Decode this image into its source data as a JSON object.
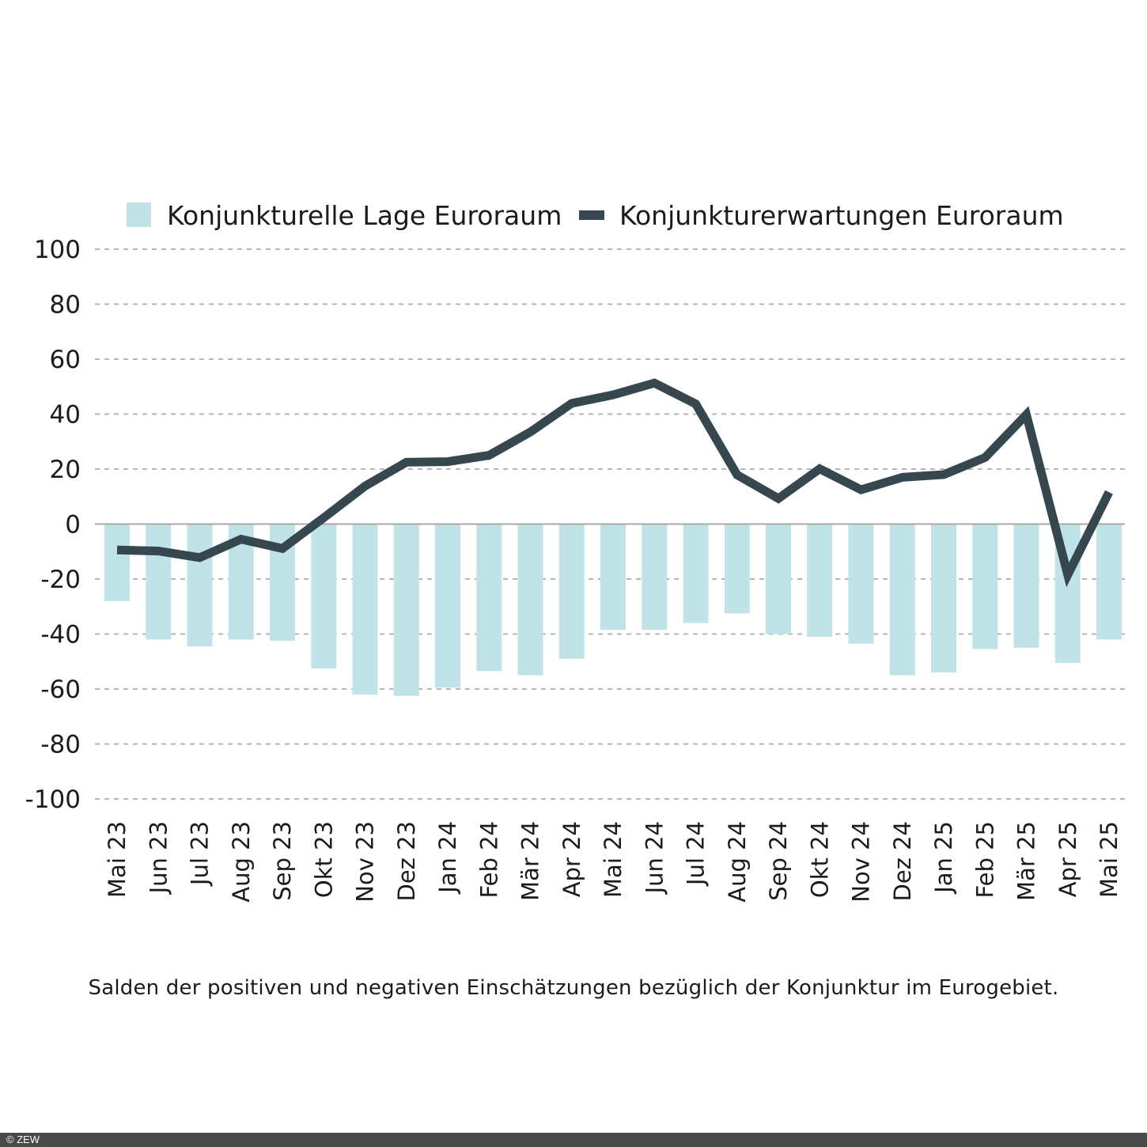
{
  "colors": {
    "bar": "#bfe3e6",
    "line": "#37474f",
    "grid": "#b5b5b5",
    "zero": "#a8a8a8"
  },
  "chart_data": {
    "type": "bar",
    "categories": [
      "Mai 23",
      "Jun 23",
      "Jul 23",
      "Aug 23",
      "Sep 23",
      "Okt 23",
      "Nov 23",
      "Dez 23",
      "Jan 24",
      "Feb 24",
      "Mär 24",
      "Apr 24",
      "Mai 24",
      "Jun 24",
      "Jul 24",
      "Aug 24",
      "Sep 24",
      "Okt 24",
      "Nov 24",
      "Dez 24",
      "Jan 25",
      "Feb 25",
      "Mär 25",
      "Apr 25",
      "Mai 25"
    ],
    "ylim": [
      -100,
      100
    ],
    "yticks": [
      "100",
      "80",
      "60",
      "40",
      "20",
      "0",
      "-20",
      "-40",
      "-60",
      "-80",
      "-100"
    ],
    "grid": "dashed horizontal",
    "legend_position": "top",
    "series": [
      {
        "name": "Konjunkturelle Lage Euroraum",
        "type": "bar",
        "values": [
          -28,
          -42,
          -44.5,
          -42,
          -42.5,
          -52.5,
          -62,
          -62.5,
          -59.5,
          -53.5,
          -55,
          -49,
          -38.5,
          -38.5,
          -36,
          -32.5,
          -40,
          -41,
          -43.5,
          -55,
          -54,
          -45.5,
          -45,
          -50.5,
          -42
        ]
      },
      {
        "name": "Konjunkturerwartungen Euroraum",
        "type": "line",
        "values": [
          -9.4,
          -9.8,
          -12.2,
          -5.5,
          -8.9,
          2.3,
          13.8,
          22.5,
          22.7,
          25.0,
          33.5,
          43.9,
          47.0,
          51.3,
          43.7,
          17.9,
          9.3,
          20.1,
          12.5,
          17.0,
          18.0,
          24.2,
          39.8,
          -18.5,
          11.6
        ]
      }
    ]
  },
  "caption": "Salden der positiven und negativen Einschätzungen bezüglich der Konjunktur  im Eurogebiet.",
  "footer": {
    "copyright": "© ZEW"
  }
}
